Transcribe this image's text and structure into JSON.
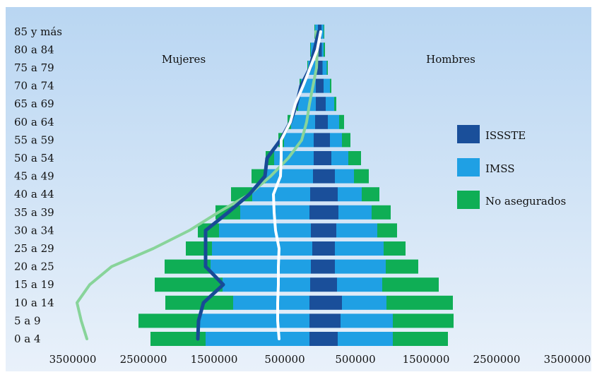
{
  "chart_data": {
    "type": "bar",
    "subtype": "population-pyramid-stacked",
    "categories": [
      "0 a 4",
      "5 a 9",
      "10 a 14",
      "15 a 19",
      "20 a 25",
      "25 a 29",
      "30 a 34",
      "35 a 39",
      "40 a 44",
      "45 a 49",
      "50 a 54",
      "55 a 59",
      "60 a 64",
      "65 a 69",
      "70 a 74",
      "75 a 79",
      "80 a 84",
      "85 y más"
    ],
    "side_labels": {
      "left": "Mujeres",
      "right": "Hombres"
    },
    "x_ticks": [
      "3500000",
      "2500000",
      "1500000",
      "500000",
      "500000",
      "1500000",
      "2500000",
      "3500000"
    ],
    "x_tick_values": [
      -3500000,
      -2500000,
      -1500000,
      -500000,
      500000,
      1500000,
      2500000,
      3500000
    ],
    "xlim": [
      -3700000,
      3800000
    ],
    "series": [
      {
        "name": "ISSSTE",
        "color": "#1a4f9a"
      },
      {
        "name": "IMSS",
        "color": "#1fa0e4"
      },
      {
        "name": "No asegurados",
        "color": "#0fae55"
      }
    ],
    "hombres": {
      "issste": [
        250000,
        290000,
        310000,
        240000,
        210000,
        210000,
        230000,
        260000,
        250000,
        210000,
        160000,
        140000,
        110000,
        80000,
        50000,
        35000,
        25000,
        20000
      ],
      "imss": [
        780000,
        740000,
        630000,
        640000,
        720000,
        690000,
        580000,
        470000,
        340000,
        270000,
        240000,
        170000,
        160000,
        120000,
        90000,
        60000,
        25000,
        30000
      ],
      "noaseg": [
        780000,
        860000,
        940000,
        800000,
        460000,
        310000,
        280000,
        270000,
        250000,
        210000,
        180000,
        120000,
        70000,
        30000,
        20000,
        15000,
        20000,
        10000
      ]
    },
    "mujeres": {
      "issste": [
        150000,
        150000,
        150000,
        140000,
        130000,
        110000,
        130000,
        150000,
        140000,
        100000,
        90000,
        90000,
        70000,
        60000,
        60000,
        50000,
        40000,
        30000
      ],
      "imss": [
        1470000,
        1570000,
        1080000,
        1240000,
        1420000,
        1420000,
        1300000,
        980000,
        820000,
        670000,
        560000,
        420000,
        340000,
        250000,
        210000,
        120000,
        90000,
        40000
      ],
      "noaseg": [
        780000,
        850000,
        960000,
        960000,
        650000,
        370000,
        300000,
        350000,
        300000,
        200000,
        120000,
        80000,
        50000,
        20000,
        20000,
        10000,
        10000,
        10000
      ]
    },
    "lines": {
      "dark_blue": [
        -1730000,
        -1720000,
        -1650000,
        -1370000,
        -1620000,
        -1620000,
        -1620000,
        -1300000,
        -1000000,
        -780000,
        -750000,
        -560000,
        -420000,
        -330000,
        -270000,
        -140000,
        -80000,
        -20000
      ],
      "light_green": [
        -3300000,
        -3380000,
        -3440000,
        -3260000,
        -2950000,
        -2360000,
        -1850000,
        -1440000,
        -1000000,
        -700000,
        -450000,
        -260000,
        -190000,
        -150000,
        -100000,
        -50000,
        -40000,
        -60000
      ],
      "white": [
        -580000,
        -600000,
        -600000,
        -590000,
        -590000,
        -580000,
        -630000,
        -650000,
        -660000,
        -560000,
        -550000,
        -550000,
        -420000,
        -350000,
        -240000,
        -140000,
        -40000,
        10000
      ]
    },
    "legend_position": "right",
    "grid": false
  }
}
